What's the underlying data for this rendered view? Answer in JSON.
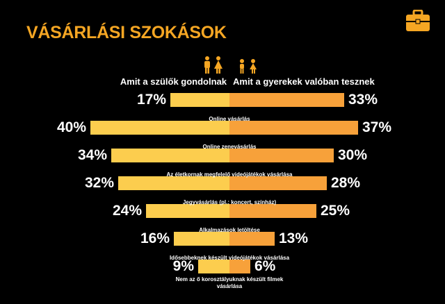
{
  "title": "VÁSÁRLÁSI SZOKÁSOK",
  "icons": {
    "briefcase": "briefcase-icon",
    "parents": "parents-icon",
    "children": "children-icon"
  },
  "colors": {
    "title": "#f5a623",
    "left_bar": "#fccd4e",
    "right_bar": "#f7a13a",
    "background": "#000000"
  },
  "chart_data": {
    "type": "bar",
    "orientation": "horizontal-diverging",
    "series": [
      {
        "name": "Amit a szülők gondolnak",
        "values": [
          17,
          40,
          34,
          32,
          24,
          16,
          9
        ]
      },
      {
        "name": "Amit a gyerekek valóban tesznek",
        "values": [
          33,
          37,
          30,
          28,
          25,
          13,
          6
        ]
      }
    ],
    "categories": [
      "",
      "Online vásárlás",
      "Online zenevásárlás",
      "Az életkornak megfelelő videójátékok vásárlása",
      "Jegyvásárlás (pl.: koncert, színház)",
      "Alkalmazások letöltése",
      "Idősebbeknek készült videójátékok vásárlása"
    ],
    "trailing_label": "Nem az ő korosztályuknak készült filmek vásárlása",
    "value_suffix": "%"
  }
}
